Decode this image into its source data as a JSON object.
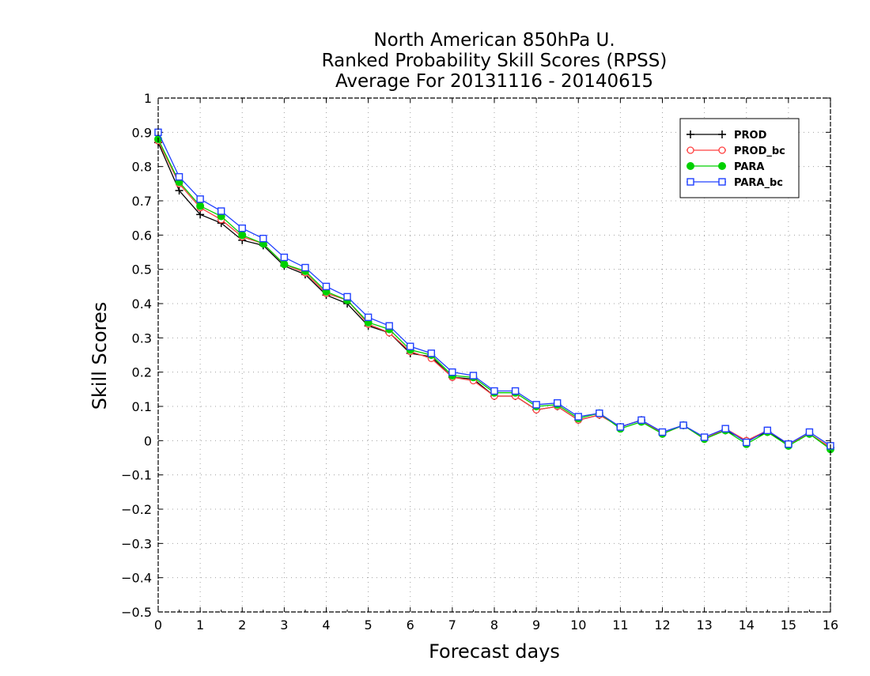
{
  "chart_data": {
    "type": "line",
    "title_lines": [
      "North American 850hPa U.",
      "Ranked Probability Skill Scores (RPSS)",
      "Average For 20131116 - 20140615"
    ],
    "xlabel": "Forecast days",
    "ylabel": "Skill Scores",
    "xlim": [
      0,
      16
    ],
    "ylim": [
      -0.5,
      1
    ],
    "x_ticks": [
      0,
      1,
      2,
      3,
      4,
      5,
      6,
      7,
      8,
      9,
      10,
      11,
      12,
      13,
      14,
      15,
      16
    ],
    "y_ticks": [
      -0.5,
      -0.4,
      -0.3,
      -0.2,
      -0.1,
      0,
      0.1,
      0.2,
      0.3,
      0.4,
      0.5,
      0.6,
      0.7,
      0.8,
      0.9,
      1
    ],
    "x_tick_labels": [
      "0",
      "1",
      "2",
      "3",
      "4",
      "5",
      "6",
      "7",
      "8",
      "9",
      "10",
      "11",
      "12",
      "13",
      "14",
      "15",
      "16"
    ],
    "y_tick_labels": [
      "−0.5",
      "−0.4",
      "−0.3",
      "−0.2",
      "−0.1",
      "0",
      "0.1",
      "0.2",
      "0.3",
      "0.4",
      "0.5",
      "0.6",
      "0.7",
      "0.8",
      "0.9",
      "1"
    ],
    "grid": true,
    "legend_position": "top-right",
    "x": [
      0,
      0.5,
      1,
      1.5,
      2,
      2.5,
      3,
      3.5,
      4,
      4.5,
      5,
      5.5,
      6,
      6.5,
      7,
      7.5,
      8,
      8.5,
      9,
      9.5,
      10,
      10.5,
      11,
      11.5,
      12,
      12.5,
      13,
      13.5,
      14,
      14.5,
      15,
      15.5,
      16
    ],
    "series": [
      {
        "name": "PROD",
        "color": "#000000",
        "marker": "plus",
        "values": [
          0.87,
          0.73,
          0.66,
          0.635,
          0.585,
          0.57,
          0.51,
          0.485,
          0.425,
          0.4,
          0.335,
          0.315,
          0.255,
          0.245,
          0.185,
          0.18,
          0.13,
          0.13,
          0.09,
          0.1,
          0.06,
          0.075,
          0.04,
          0.06,
          0.02,
          0.045,
          0.005,
          0.03,
          0.0,
          0.025,
          -0.01,
          0.02,
          -0.02
        ]
      },
      {
        "name": "PROD_bc",
        "color": "#ff4040",
        "marker": "circle-open",
        "values": [
          0.875,
          0.75,
          0.68,
          0.645,
          0.595,
          0.575,
          0.515,
          0.49,
          0.43,
          0.41,
          0.34,
          0.315,
          0.26,
          0.24,
          0.185,
          0.175,
          0.13,
          0.13,
          0.09,
          0.1,
          0.06,
          0.075,
          0.04,
          0.06,
          0.02,
          0.045,
          0.005,
          0.035,
          0.0,
          0.03,
          -0.01,
          0.02,
          -0.02
        ]
      },
      {
        "name": "PARA",
        "color": "#00d000",
        "marker": "circle-filled",
        "values": [
          0.88,
          0.755,
          0.685,
          0.655,
          0.6,
          0.575,
          0.515,
          0.495,
          0.435,
          0.41,
          0.345,
          0.325,
          0.265,
          0.25,
          0.19,
          0.185,
          0.14,
          0.14,
          0.1,
          0.105,
          0.065,
          0.08,
          0.035,
          0.055,
          0.02,
          0.045,
          0.005,
          0.03,
          -0.01,
          0.025,
          -0.015,
          0.02,
          -0.025
        ]
      },
      {
        "name": "PARA_bc",
        "color": "#2040ff",
        "marker": "square-open",
        "values": [
          0.9,
          0.77,
          0.705,
          0.67,
          0.62,
          0.59,
          0.535,
          0.505,
          0.45,
          0.42,
          0.36,
          0.335,
          0.275,
          0.255,
          0.2,
          0.19,
          0.145,
          0.145,
          0.105,
          0.11,
          0.07,
          0.08,
          0.04,
          0.06,
          0.025,
          0.045,
          0.01,
          0.035,
          -0.005,
          0.03,
          -0.01,
          0.025,
          -0.015
        ]
      }
    ]
  }
}
